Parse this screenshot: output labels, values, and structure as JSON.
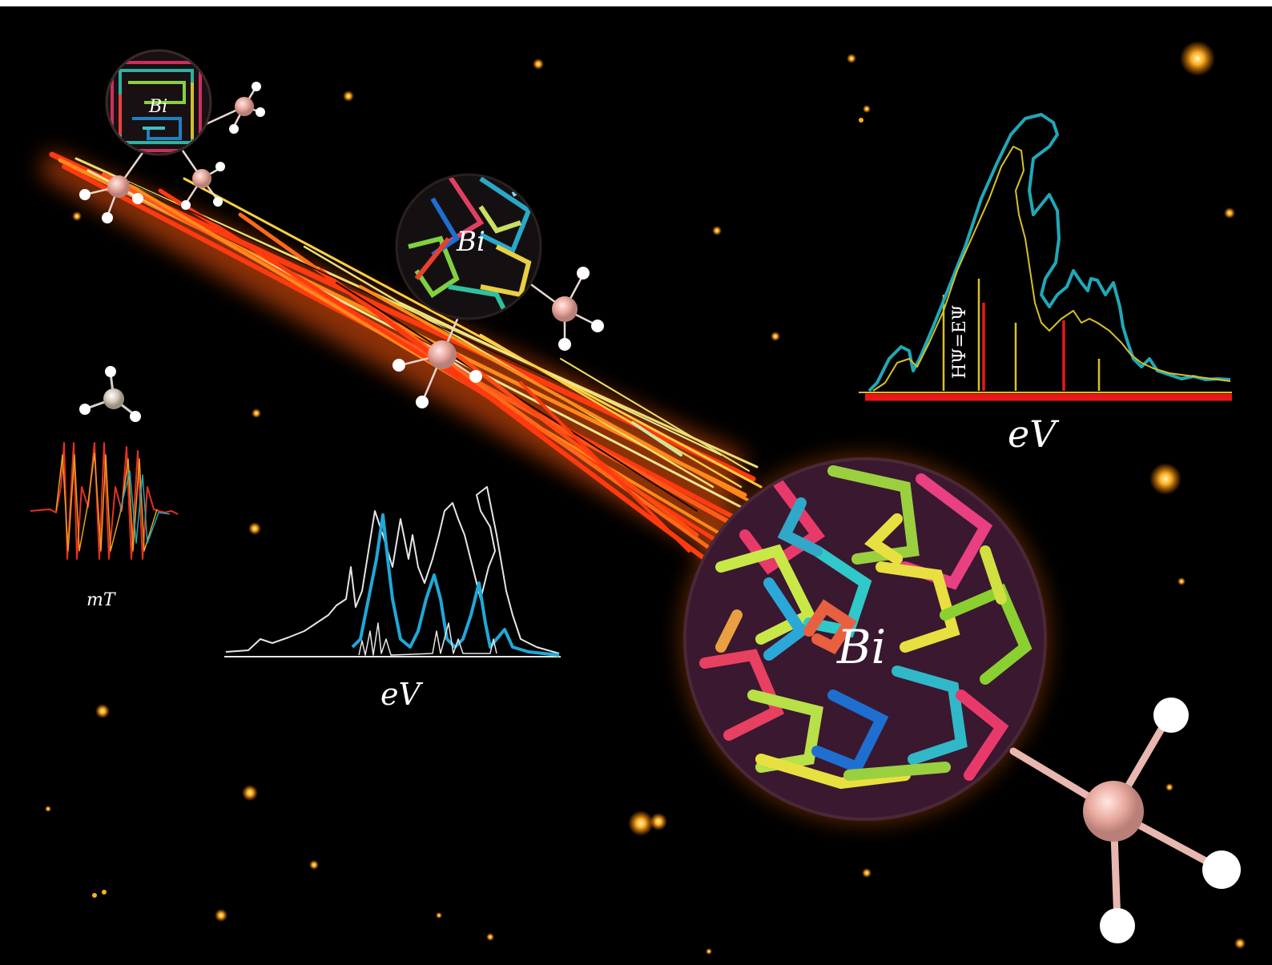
{
  "labels": {
    "small_sphere": "Bi",
    "mid_sphere": "Bi",
    "big_sphere": "Bi",
    "epr_axis": "mT",
    "spectrum_left_axis": "eV",
    "spectrum_right_axis": "eV",
    "equation": "HΨ=EΨ"
  },
  "colors": {
    "background": "#000000",
    "star": "#ffb020",
    "trail_red": "#ff3a10",
    "trail_orange": "#ff8a1a",
    "trail_yellow": "#e8e070",
    "spectrum_teal": "#20a8b8",
    "spectrum_blue": "#1e6fd0",
    "spectrum_white": "#e6e6e6",
    "stick_red": "#e81818",
    "stick_yellow": "#d8c028",
    "atom_pink": "#e8b0a8",
    "atom_white": "#ffffff",
    "atom_grey": "#cfc6b8"
  }
}
